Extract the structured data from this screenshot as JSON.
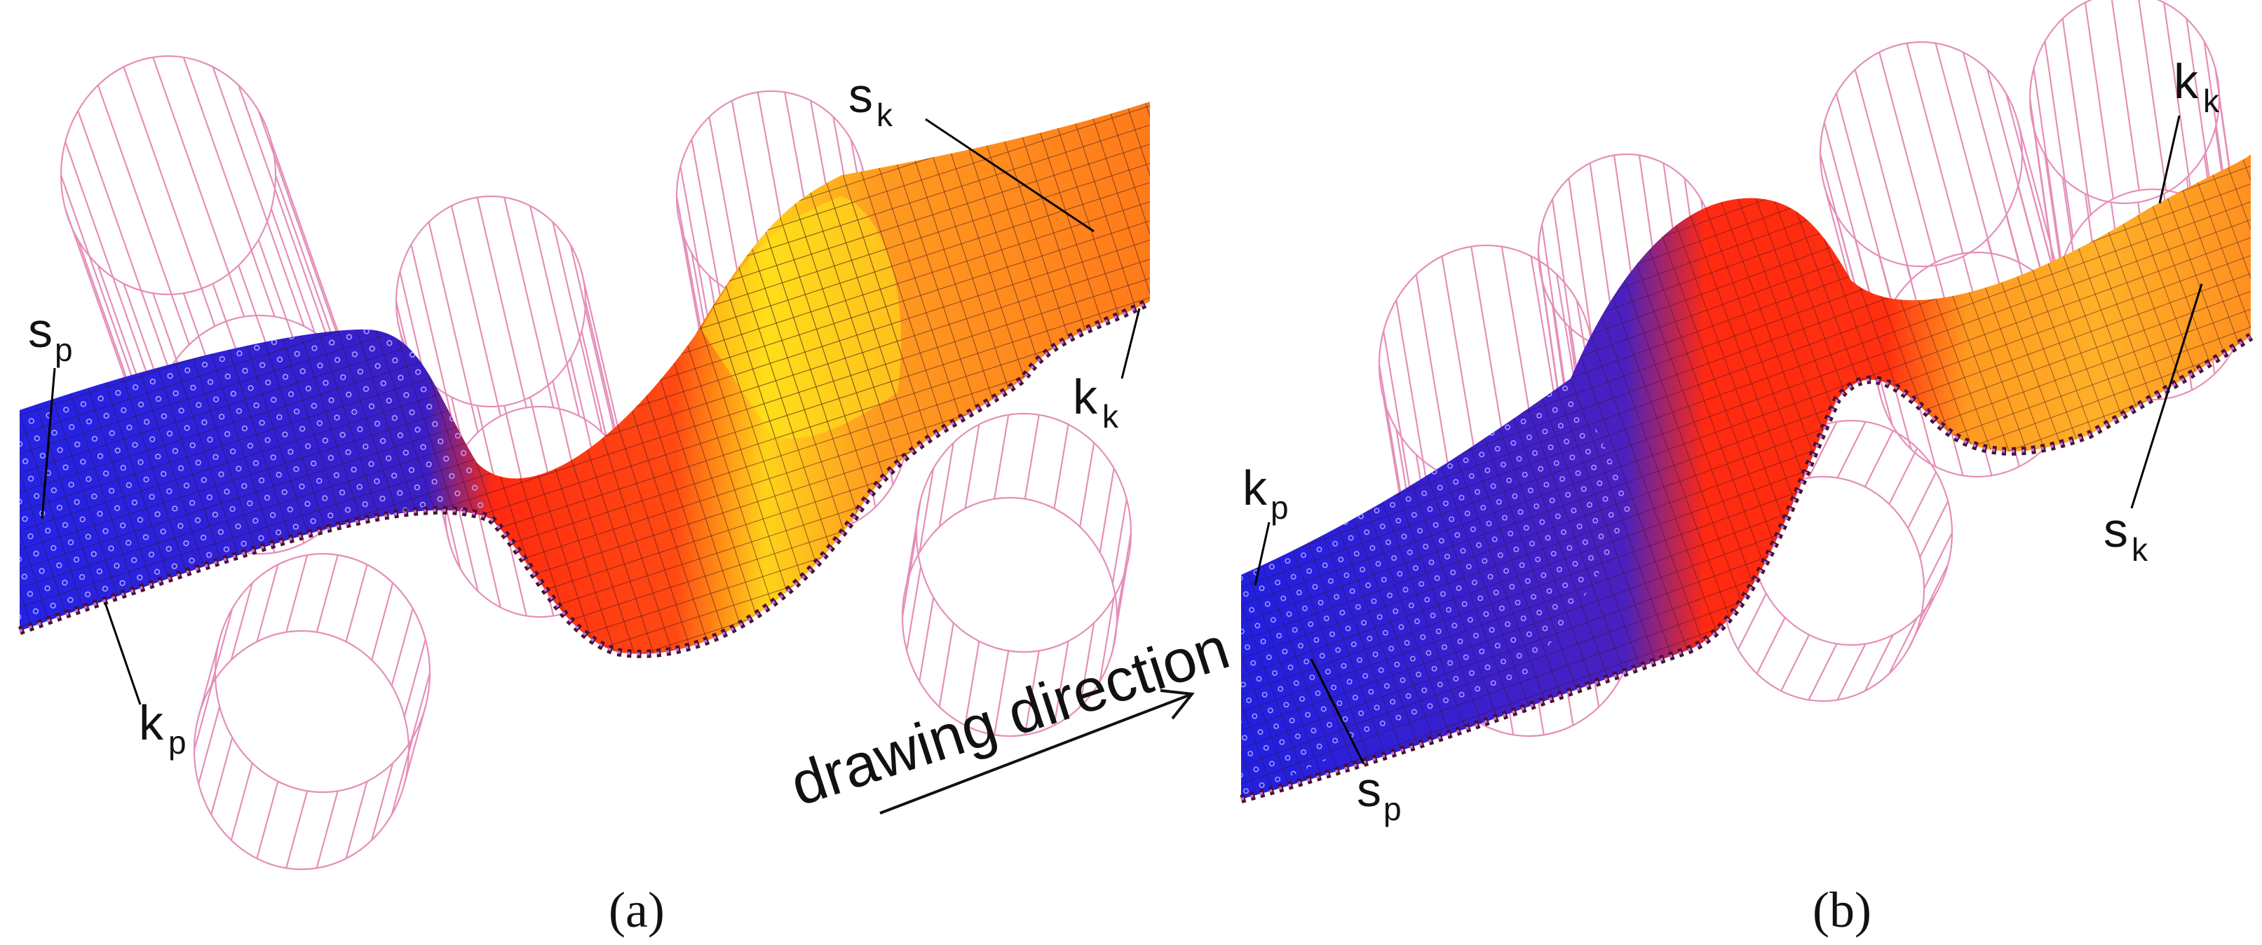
{
  "panels": [
    {
      "caption": "(a)",
      "labels": {
        "s_start": "s",
        "s_start_sub": "p",
        "k_start": "k",
        "k_start_sub": "p",
        "s_end": "s",
        "s_end_sub": "k",
        "k_end": "k",
        "k_end_sub": "k"
      }
    },
    {
      "caption": "(b)",
      "labels": {
        "s_start": "s",
        "s_start_sub": "p",
        "k_start": "k",
        "k_start_sub": "p",
        "s_end": "s",
        "s_end_sub": "k",
        "k_end": "k",
        "k_end_sub": "k"
      }
    }
  ],
  "arrow_label": "drawing direction",
  "colors": {
    "cylinder_wire": "#e58fb8",
    "strip_start": "#2a2ae8",
    "strip_mid": "#ff2a10",
    "strip_end": "#ffb020",
    "strip_highlight": "#ffe81a",
    "mesh": "#3a1020"
  }
}
